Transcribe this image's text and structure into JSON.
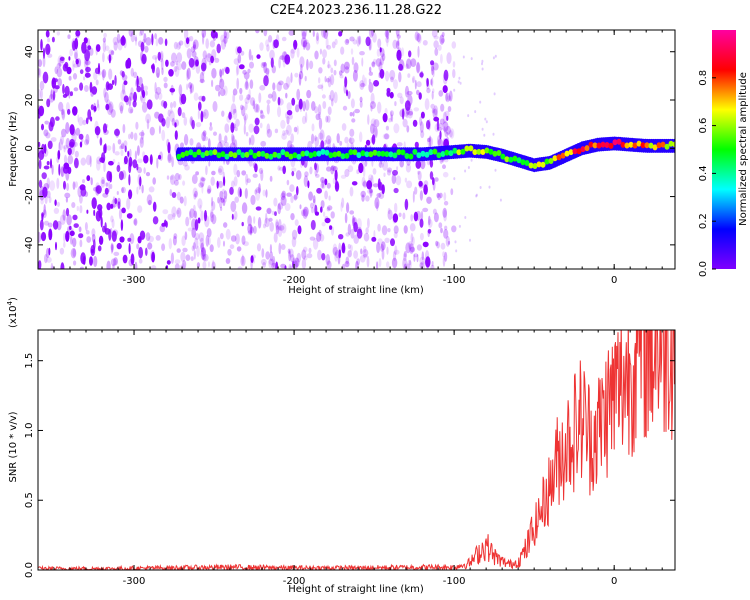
{
  "title": "C2E4.2023.236.11.28.G22",
  "chart_data": [
    {
      "type": "heatmap",
      "xlabel": "Height of straight line (km)",
      "ylabel": "Frequency (Hz)",
      "xlim": [
        -360,
        38
      ],
      "ylim": [
        -50,
        49
      ],
      "xticks": [
        -300,
        -200,
        -100,
        0
      ],
      "xtick_labels": [
        "-300",
        "-200",
        "-100",
        "0"
      ],
      "yticks": [
        -40,
        -20,
        0,
        20,
        40
      ],
      "ytick_labels": [
        "-40",
        "-20",
        "0",
        "20",
        "40"
      ],
      "colorbar": {
        "label": "Normalized spectral amplitude",
        "range": [
          0,
          1
        ],
        "ticks": [
          0.0,
          0.2,
          0.4,
          0.6,
          0.8
        ],
        "tick_labels": [
          "0.0",
          "0.2",
          "0.4",
          "0.6",
          "0.8"
        ],
        "colors": [
          "#ffffff",
          "#7f00ff",
          "#0000ff",
          "#00ffff",
          "#00ff00",
          "#ffff00",
          "#ff0000",
          "#ff00a0"
        ]
      },
      "noise_region_x": [
        -360,
        -100
      ],
      "dense_noise_x": [
        -360,
        -275
      ],
      "signal_ridge": {
        "x": [
          -272,
          -250,
          -200,
          -150,
          -120,
          -100,
          -90,
          -80,
          -70,
          -60,
          -50,
          -40,
          -30,
          -20,
          -10,
          0,
          10,
          20,
          38
        ],
        "frequency": [
          -2.5,
          -2.5,
          -2.5,
          -2.5,
          -2.5,
          -1.5,
          -1,
          -1.5,
          -3,
          -5,
          -7,
          -6,
          -3,
          0,
          1.5,
          2,
          1.5,
          1,
          1
        ],
        "amplitude": [
          0.5,
          0.55,
          0.5,
          0.5,
          0.5,
          0.55,
          0.7,
          0.65,
          0.6,
          0.55,
          0.6,
          0.7,
          0.8,
          0.85,
          0.95,
          0.9,
          0.85,
          0.8,
          0.75
        ]
      },
      "grid": false
    },
    {
      "type": "line",
      "xlabel": "Height of straight line (km)",
      "ylabel": "SNR (10 * v/v)",
      "y_multiplier_label": "(x10",
      "y_multiplier_exp": "4",
      "y_multiplier_close": ")",
      "xlim": [
        -360,
        38
      ],
      "ylim": [
        0,
        1.72
      ],
      "xticks": [
        -300,
        -200,
        -100,
        0
      ],
      "xtick_labels": [
        "-300",
        "-200",
        "-100",
        "0"
      ],
      "yticks": [
        0.0,
        0.5,
        1.0,
        1.5
      ],
      "ytick_labels": [
        "0.0",
        "0.5",
        "1.0",
        "1.5"
      ],
      "series": [
        {
          "color": "#ee3333",
          "x": [
            -360,
            -320,
            -280,
            -240,
            -200,
            -160,
            -120,
            -100,
            -90,
            -85,
            -80,
            -75,
            -70,
            -65,
            -60,
            -55,
            -50,
            -45,
            -40,
            -35,
            -30,
            -25,
            -20,
            -15,
            -10,
            -5,
            0,
            5,
            10,
            15,
            20,
            25,
            30,
            38
          ],
          "values": [
            0.01,
            0.01,
            0.015,
            0.02,
            0.015,
            0.015,
            0.02,
            0.02,
            0.05,
            0.12,
            0.18,
            0.1,
            0.06,
            0.04,
            0.06,
            0.15,
            0.3,
            0.45,
            0.6,
            0.8,
            0.9,
            1.0,
            1.1,
            0.95,
            1.0,
            1.15,
            1.25,
            1.35,
            1.45,
            1.55,
            1.6,
            1.62,
            1.65,
            1.68
          ]
        }
      ],
      "grid": false
    }
  ]
}
